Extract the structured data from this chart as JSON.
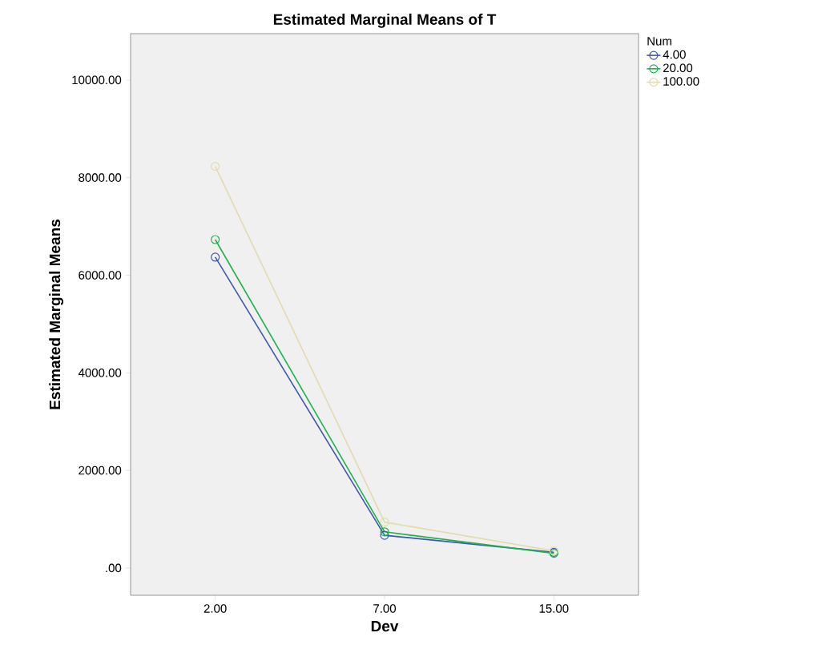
{
  "chart_data": {
    "type": "line",
    "title": "Estimated Marginal Means of T",
    "xlabel": "Dev",
    "ylabel": "Estimated Marginal Means",
    "legend_title": "Num",
    "categories": [
      "2.00",
      "7.00",
      "15.00"
    ],
    "series": [
      {
        "name": "4.00",
        "color": "#3e58ac",
        "values": [
          6370,
          670,
          320
        ]
      },
      {
        "name": "20.00",
        "color": "#21b24b",
        "values": [
          6730,
          740,
          300
        ]
      },
      {
        "name": "100.00",
        "color": "#e2dbac",
        "values": [
          8230,
          940,
          350
        ]
      }
    ],
    "ylim": [
      -560,
      10950
    ],
    "yticks": [
      {
        "value": 0,
        "label": ".00"
      },
      {
        "value": 2000,
        "label": "2000.00"
      },
      {
        "value": 4000,
        "label": "4000.00"
      },
      {
        "value": 6000,
        "label": "6000.00"
      },
      {
        "value": 8000,
        "label": "8000.00"
      },
      {
        "value": 10000,
        "label": "10000.00"
      }
    ],
    "grid": false,
    "legend": "top right",
    "marker": "circle",
    "line_style": "solid"
  }
}
